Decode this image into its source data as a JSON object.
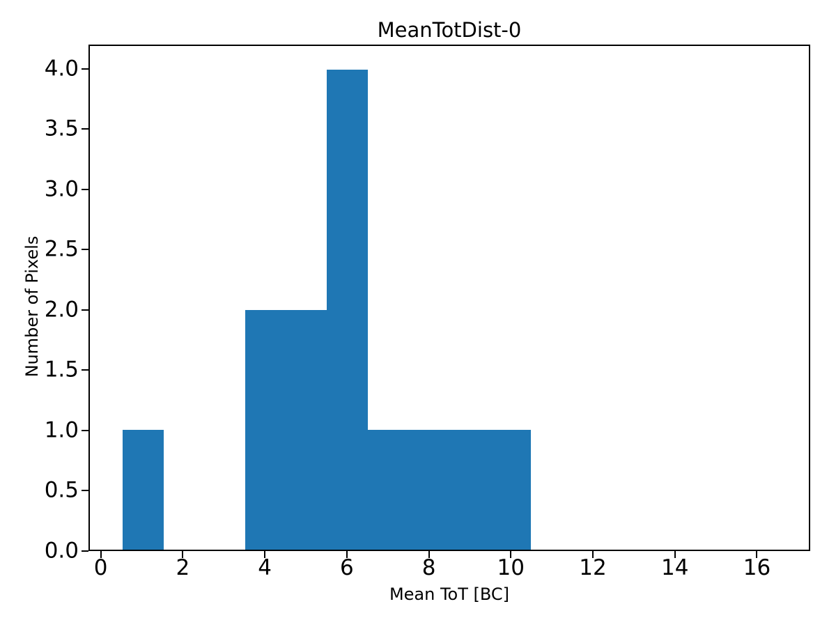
{
  "chart_data": {
    "type": "bar",
    "subtype": "histogram",
    "title": "MeanTotDist-0",
    "xlabel": "Mean ToT [BC]",
    "ylabel": "Number of Pixels",
    "bar_color": "#1f77b4",
    "axis_color": "#000000",
    "background_color": "#ffffff",
    "grid": false,
    "legend": false,
    "xlim": [
      -0.3,
      17.3
    ],
    "ylim": [
      0,
      4.2
    ],
    "xticks": [
      0,
      2,
      4,
      6,
      8,
      10,
      12,
      14,
      16
    ],
    "xtick_labels": [
      "0",
      "2",
      "4",
      "6",
      "8",
      "10",
      "12",
      "14",
      "16"
    ],
    "yticks": [
      0,
      0.5,
      1,
      1.5,
      2,
      2.5,
      3,
      3.5,
      4
    ],
    "ytick_labels": [
      "0.0",
      "0.5",
      "1.0",
      "1.5",
      "2.0",
      "2.5",
      "3.0",
      "3.5",
      "4.0"
    ],
    "bin_edges": [
      0.5,
      1.5,
      2.5,
      3.5,
      4.5,
      5.5,
      6.5,
      7.5,
      8.5,
      9.5,
      10.5,
      11.5,
      12.5,
      13.5,
      14.5,
      15.5,
      16.5
    ],
    "counts": [
      1,
      0,
      0,
      2,
      2,
      4,
      1,
      1,
      1,
      1,
      0,
      0,
      0,
      0,
      0,
      0
    ]
  }
}
